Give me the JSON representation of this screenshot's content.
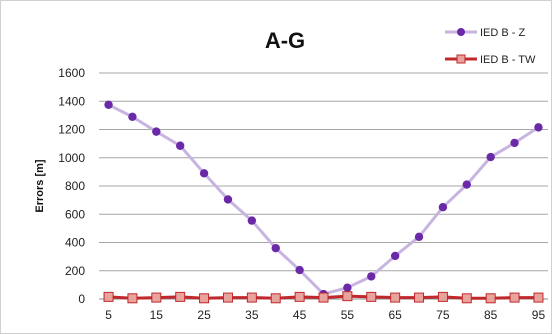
{
  "chart_data": {
    "type": "line",
    "title": "A-G",
    "xlabel": "",
    "ylabel": "Errors [m]",
    "x": [
      5,
      10,
      15,
      20,
      25,
      30,
      35,
      40,
      45,
      50,
      55,
      60,
      65,
      70,
      75,
      80,
      85,
      90,
      95
    ],
    "x_tick_labels": [
      "5",
      "15",
      "25",
      "35",
      "45",
      "55",
      "65",
      "75",
      "85",
      "95"
    ],
    "y_tick_labels": [
      "0",
      "200",
      "400",
      "600",
      "800",
      "1000",
      "1200",
      "1400",
      "1600"
    ],
    "ylim": [
      0,
      1600
    ],
    "grid": "horizontal",
    "legend": "top-right",
    "series": [
      {
        "name": "IED B - Z",
        "color": "#c8b4e0",
        "marker": "circle",
        "marker_color": "#6a2aa8",
        "values": [
          1375,
          1290,
          1185,
          1085,
          890,
          705,
          555,
          360,
          205,
          35,
          80,
          160,
          305,
          440,
          650,
          810,
          1005,
          1105,
          1215
        ]
      },
      {
        "name": "IED B - TW",
        "color": "#c0282c",
        "marker": "square",
        "marker_color": "#e8a49c",
        "values": [
          15,
          5,
          10,
          15,
          5,
          10,
          10,
          5,
          15,
          10,
          20,
          15,
          10,
          10,
          15,
          5,
          5,
          10,
          10
        ]
      }
    ]
  }
}
